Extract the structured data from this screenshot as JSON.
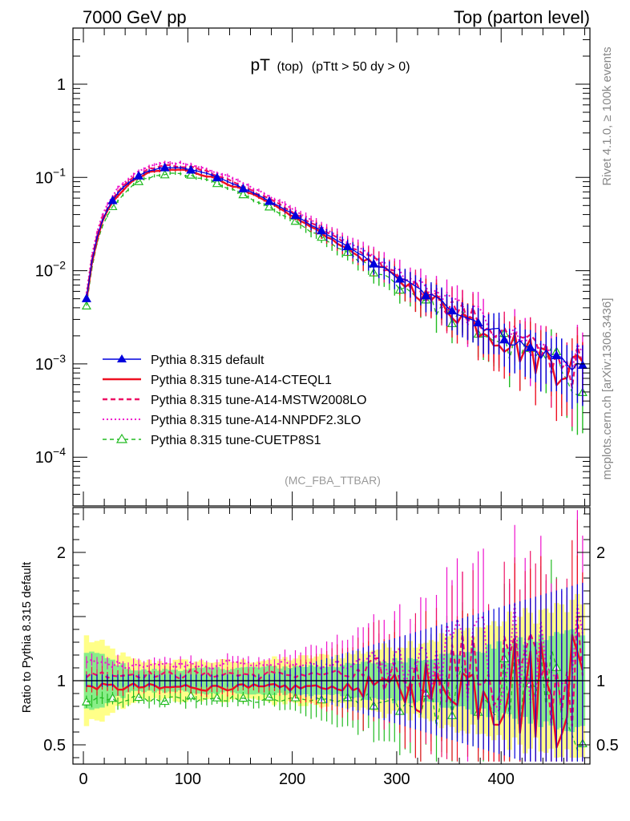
{
  "header": {
    "left": "7000 GeV pp",
    "right": "Top (parton level)"
  },
  "side_labels": {
    "rivet": "Rivet 4.1.0, ≥ 100k events",
    "mcplots": "mcplots.cern.ch [arXiv:1306.3436]"
  },
  "plot_title": {
    "main": "pT",
    "sub1": "(top)",
    "sub2": "(pTtt > 50 dy > 0)"
  },
  "analysis_tag": "(MC_FBA_TTBAR)",
  "colors": {
    "default": "#0000dd",
    "cteql1": "#ee1122",
    "mstw": "#ee1166",
    "nnpdf": "#ee11cc",
    "cuetp": "#22bb22",
    "band_yellow": "#ffff88",
    "band_green": "#88ee88"
  },
  "chart_data": [
    {
      "type": "line",
      "panel": "main",
      "yscale": "log",
      "xlim": [
        -10,
        485
      ],
      "ylim": [
        3e-05,
        4
      ],
      "y_ticks": [
        {
          "value": 1,
          "label": "1"
        },
        {
          "value": 0.1,
          "label": "10",
          "exp": "−1"
        },
        {
          "value": 0.01,
          "label": "10",
          "exp": "−2"
        },
        {
          "value": 0.001,
          "label": "10",
          "exp": "−3"
        },
        {
          "value": 0.0001,
          "label": "10",
          "exp": "−4"
        }
      ],
      "legend": [
        {
          "key": "default",
          "label": "Pythia 8.315 default"
        },
        {
          "key": "cteql1",
          "label": "Pythia 8.315 tune-A14-CTEQL1"
        },
        {
          "key": "mstw",
          "label": "Pythia 8.315 tune-A14-MSTW2008LO"
        },
        {
          "key": "nnpdf",
          "label": "Pythia 8.315 tune-A14-NNPDF2.3LO"
        },
        {
          "key": "cuetp",
          "label": "Pythia 8.315 tune-CUETP8S1"
        }
      ],
      "curve_points": [
        {
          "x": 3,
          "y": 0.005
        },
        {
          "x": 10,
          "y": 0.018
        },
        {
          "x": 20,
          "y": 0.04
        },
        {
          "x": 30,
          "y": 0.062
        },
        {
          "x": 40,
          "y": 0.082
        },
        {
          "x": 50,
          "y": 0.1
        },
        {
          "x": 60,
          "y": 0.115
        },
        {
          "x": 70,
          "y": 0.123
        },
        {
          "x": 80,
          "y": 0.127
        },
        {
          "x": 90,
          "y": 0.127
        },
        {
          "x": 100,
          "y": 0.124
        },
        {
          "x": 110,
          "y": 0.117
        },
        {
          "x": 120,
          "y": 0.108
        },
        {
          "x": 130,
          "y": 0.099
        },
        {
          "x": 140,
          "y": 0.089
        },
        {
          "x": 150,
          "y": 0.079
        },
        {
          "x": 160,
          "y": 0.07
        },
        {
          "x": 170,
          "y": 0.062
        },
        {
          "x": 180,
          "y": 0.054
        },
        {
          "x": 190,
          "y": 0.047
        },
        {
          "x": 200,
          "y": 0.041
        },
        {
          "x": 210,
          "y": 0.035
        },
        {
          "x": 220,
          "y": 0.03
        },
        {
          "x": 230,
          "y": 0.026
        },
        {
          "x": 240,
          "y": 0.022
        },
        {
          "x": 250,
          "y": 0.019
        },
        {
          "x": 260,
          "y": 0.016
        },
        {
          "x": 270,
          "y": 0.0138
        },
        {
          "x": 280,
          "y": 0.0118
        },
        {
          "x": 290,
          "y": 0.0101
        },
        {
          "x": 300,
          "y": 0.0087
        },
        {
          "x": 310,
          "y": 0.0075
        },
        {
          "x": 320,
          "y": 0.0064
        },
        {
          "x": 330,
          "y": 0.0055
        },
        {
          "x": 340,
          "y": 0.0048
        },
        {
          "x": 350,
          "y": 0.0042
        },
        {
          "x": 360,
          "y": 0.0036
        },
        {
          "x": 370,
          "y": 0.0031
        },
        {
          "x": 380,
          "y": 0.0027
        },
        {
          "x": 390,
          "y": 0.0024
        },
        {
          "x": 400,
          "y": 0.0021
        },
        {
          "x": 410,
          "y": 0.0018
        },
        {
          "x": 420,
          "y": 0.0016
        },
        {
          "x": 430,
          "y": 0.0014
        },
        {
          "x": 440,
          "y": 0.0013
        },
        {
          "x": 450,
          "y": 0.0012
        },
        {
          "x": 460,
          "y": 0.0011
        },
        {
          "x": 470,
          "y": 0.001
        },
        {
          "x": 478,
          "y": 0.00095
        }
      ],
      "tune_scale": {
        "default": 1.0,
        "cteql1": 0.95,
        "mstw": 1.05,
        "nnpdf": 1.13,
        "cuetp": 0.85
      },
      "marker_every": 5,
      "bin_width": 5
    },
    {
      "type": "line",
      "panel": "ratio",
      "xlabel": "",
      "ylabel": "Ratio to Pythia 8.315 default",
      "xlim": [
        -10,
        485
      ],
      "ylim": [
        0.35,
        2.35
      ],
      "x_ticks": [
        0,
        100,
        200,
        300,
        400
      ],
      "y_ticks": [
        {
          "value": 0.5,
          "label": "0.5"
        },
        {
          "value": 1,
          "label": "1"
        },
        {
          "value": 2,
          "label": "2"
        }
      ],
      "reference_line": 1,
      "ratio_means": {
        "default": 1.0,
        "cteql1": 0.95,
        "mstw": 1.05,
        "nnpdf": 1.13,
        "cuetp": 0.85
      },
      "band_half_width": [
        {
          "x": 0,
          "yellow": 0.35,
          "green": 0.25
        },
        {
          "x": 50,
          "yellow": 0.15,
          "green": 0.08
        },
        {
          "x": 150,
          "yellow": 0.15,
          "green": 0.1
        },
        {
          "x": 250,
          "yellow": 0.2,
          "green": 0.12
        },
        {
          "x": 350,
          "yellow": 0.35,
          "green": 0.2
        },
        {
          "x": 420,
          "yellow": 0.5,
          "green": 0.3
        },
        {
          "x": 480,
          "yellow": 0.6,
          "green": 0.4
        }
      ]
    }
  ]
}
